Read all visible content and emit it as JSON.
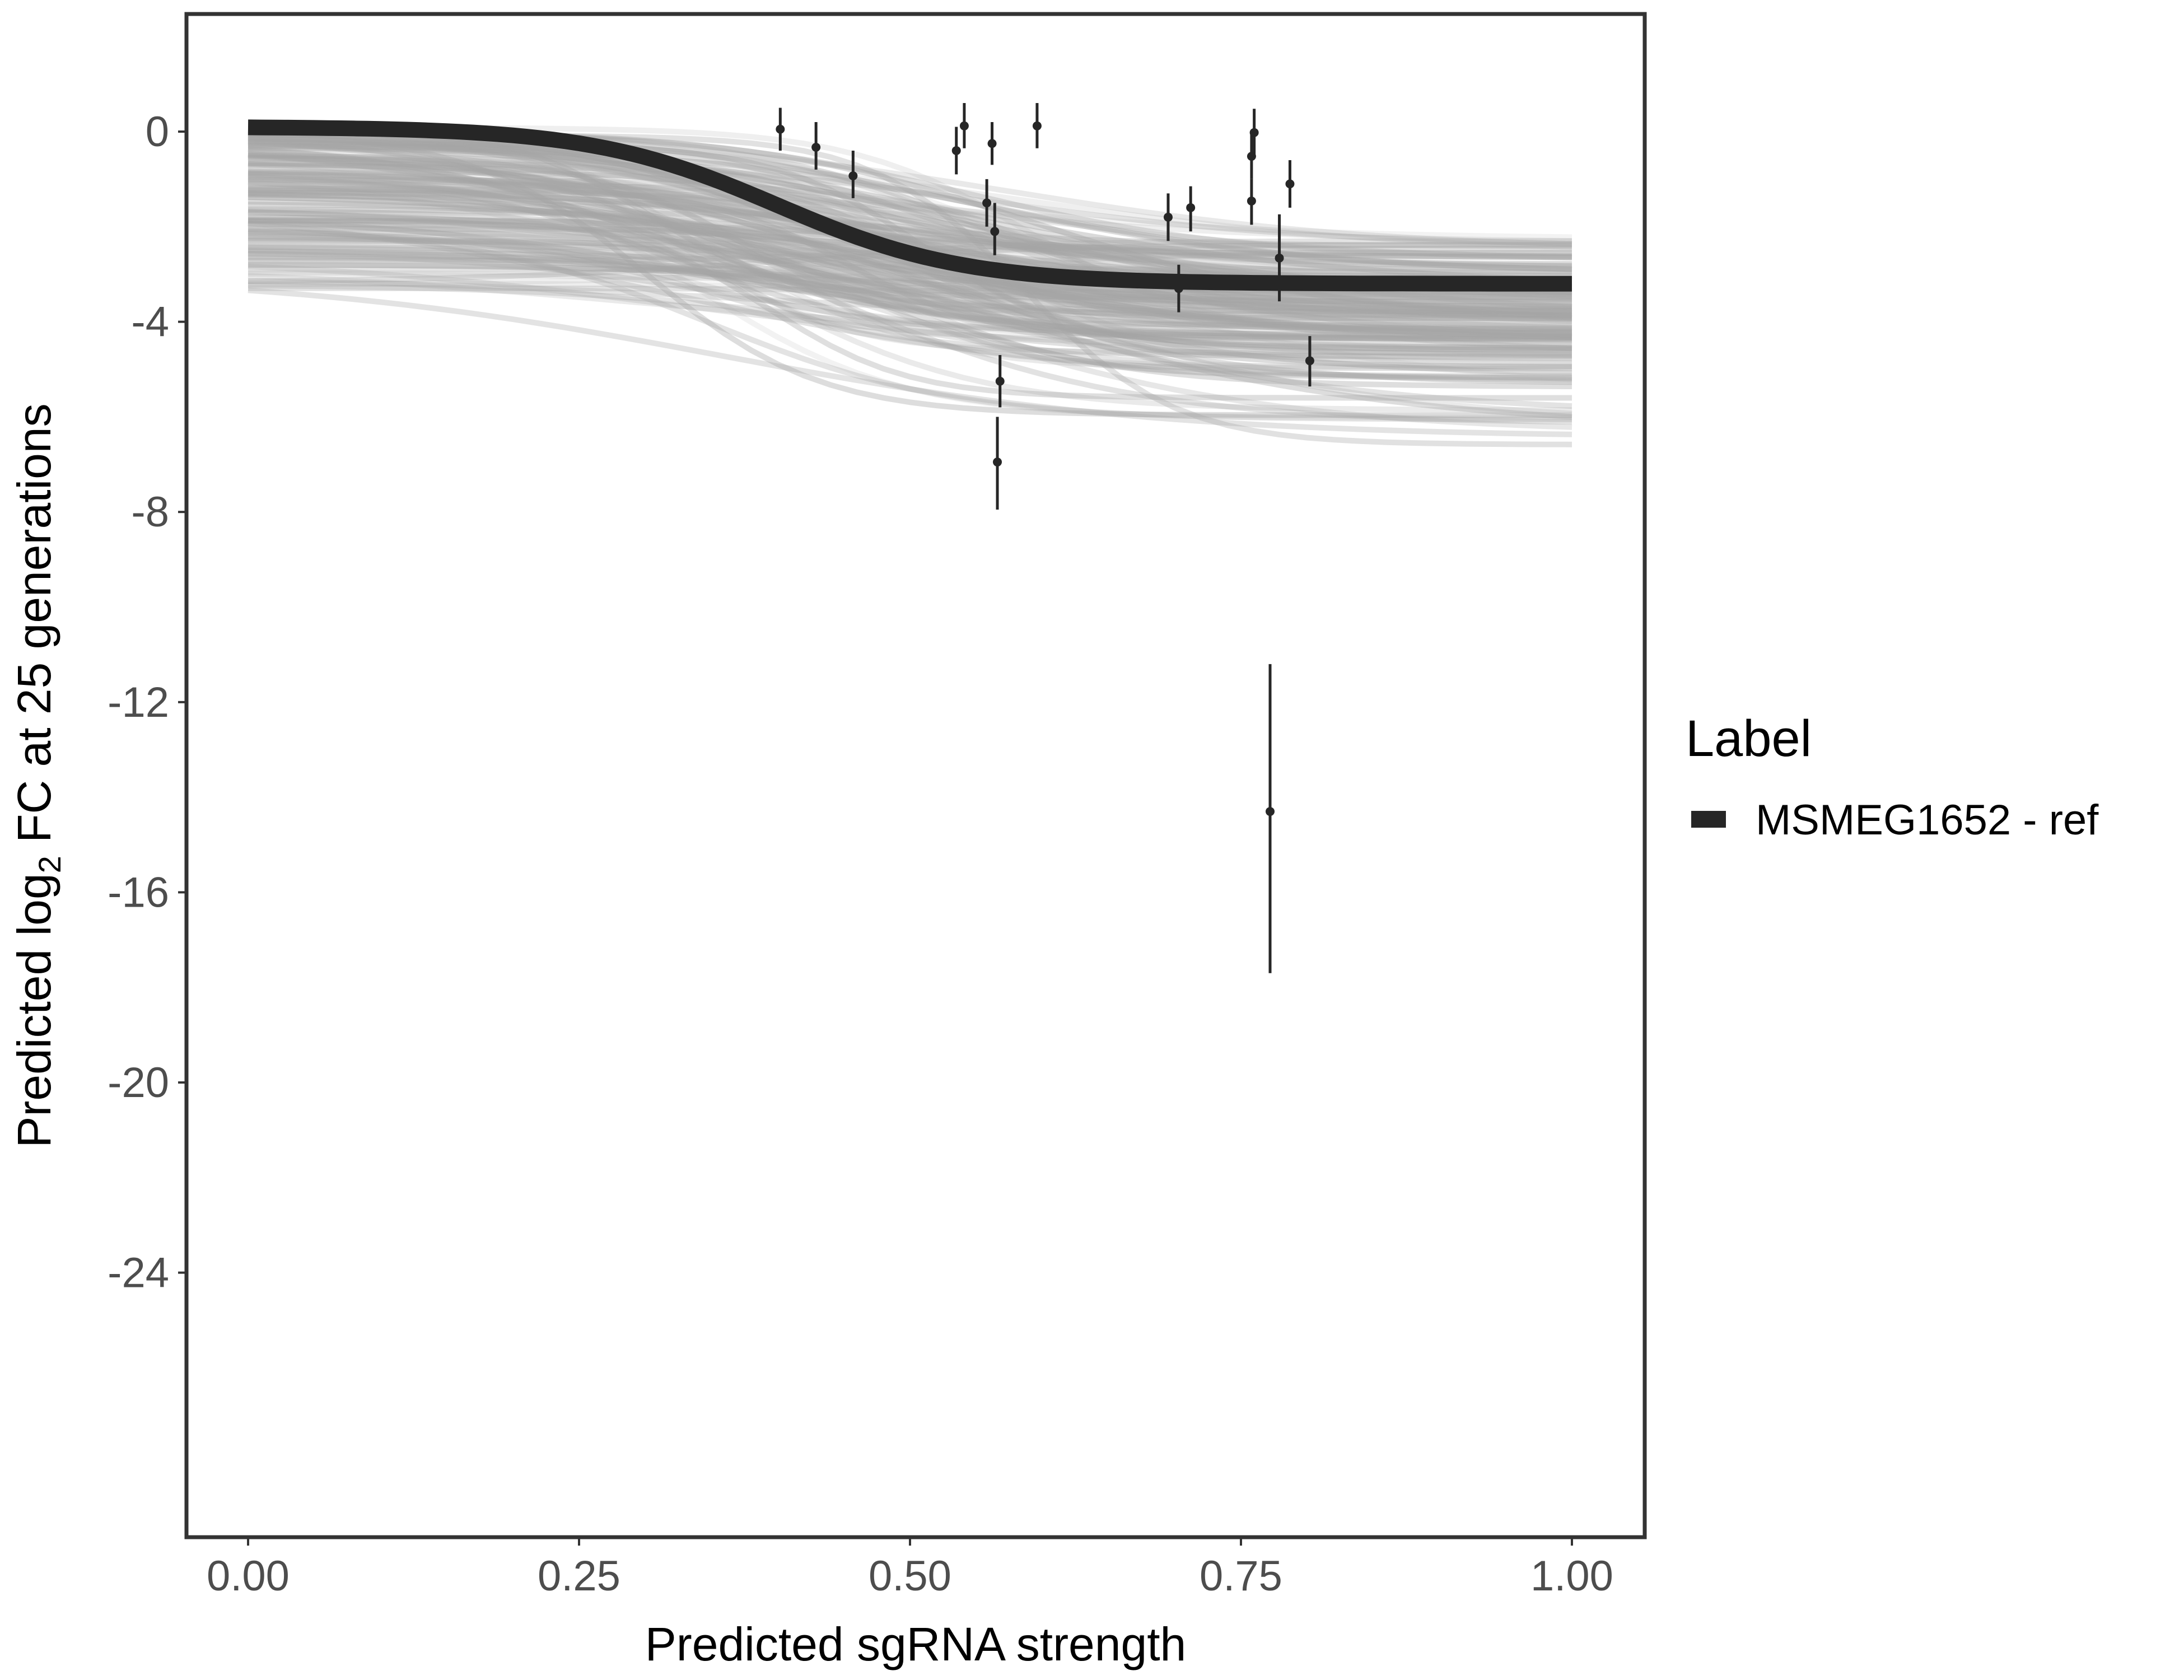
{
  "chart_data": {
    "type": "line",
    "xlabel": "Predicted sgRNA strength",
    "ylabel_parts": [
      "Predicted  log",
      "2",
      " FC at 25 generations"
    ],
    "xlim": [
      -0.1,
      1.1
    ],
    "ylim": [
      -29.5,
      2.5
    ],
    "x_ticks": [
      0,
      0.25,
      0.5,
      0.75,
      1
    ],
    "x_tick_labels": [
      "0.00",
      "0.25",
      "0.50",
      "0.75",
      "1.00"
    ],
    "y_ticks": [
      0,
      -4,
      -8,
      -12,
      -16,
      -20,
      -24
    ],
    "y_tick_labels": [
      "0",
      "-4",
      "-8",
      "-12",
      "-16",
      "-20",
      "-24"
    ],
    "grid": false,
    "legend": {
      "title": "Label",
      "position": "right",
      "entries": [
        {
          "label": "MSMEG1652 - ref",
          "color": "#262626"
        }
      ]
    },
    "colors": {
      "fit_line": "#262626",
      "posterior_draws": "#a6a6a6",
      "points": "#262626",
      "frame": "#333333"
    },
    "fit_curve": {
      "name": "MSMEG1652 - ref",
      "shape": "sigmoid",
      "y_at_x0": 0.1,
      "y_at_x1": -3.2,
      "midpoint_x": 0.4
    },
    "posterior_draws": {
      "start_range": [
        0.1,
        -3.4
      ],
      "end_range": [
        -0.3,
        -6.5
      ]
    },
    "points": [
      {
        "x": 0.402,
        "y": 0.05,
        "ymin": -0.4,
        "ymax": 0.5
      },
      {
        "x": 0.429,
        "y": -0.33,
        "ymin": -0.8,
        "ymax": 0.2
      },
      {
        "x": 0.457,
        "y": -0.93,
        "ymin": -1.4,
        "ymax": -0.4
      },
      {
        "x": 0.535,
        "y": -0.4,
        "ymin": -0.9,
        "ymax": 0.1
      },
      {
        "x": 0.541,
        "y": 0.12,
        "ymin": -0.35,
        "ymax": 0.6
      },
      {
        "x": 0.562,
        "y": -0.25,
        "ymin": -0.7,
        "ymax": 0.2
      },
      {
        "x": 0.558,
        "y": -1.5,
        "ymin": -2.0,
        "ymax": -1.0
      },
      {
        "x": 0.564,
        "y": -2.1,
        "ymin": -2.6,
        "ymax": -1.5
      },
      {
        "x": 0.568,
        "y": -5.25,
        "ymin": -5.8,
        "ymax": -4.7
      },
      {
        "x": 0.566,
        "y": -6.95,
        "ymin": -7.95,
        "ymax": -6.0
      },
      {
        "x": 0.596,
        "y": 0.12,
        "ymin": -0.35,
        "ymax": 0.6
      },
      {
        "x": 0.695,
        "y": -1.8,
        "ymin": -2.3,
        "ymax": -1.3
      },
      {
        "x": 0.703,
        "y": -3.3,
        "ymin": -3.8,
        "ymax": -2.8
      },
      {
        "x": 0.712,
        "y": -1.6,
        "ymin": -2.1,
        "ymax": -1.15
      },
      {
        "x": 0.76,
        "y": -0.02,
        "ymin": -0.5,
        "ymax": 0.48
      },
      {
        "x": 0.758,
        "y": -0.52,
        "ymin": -1.0,
        "ymax": 0.0
      },
      {
        "x": 0.758,
        "y": -1.46,
        "ymin": -1.96,
        "ymax": -1.0
      },
      {
        "x": 0.772,
        "y": -14.3,
        "ymin": -17.7,
        "ymax": -11.2
      },
      {
        "x": 0.779,
        "y": -2.66,
        "ymin": -3.57,
        "ymax": -1.74
      },
      {
        "x": 0.787,
        "y": -1.1,
        "ymin": -1.6,
        "ymax": -0.6
      },
      {
        "x": 0.802,
        "y": -4.82,
        "ymin": -5.36,
        "ymax": -4.3
      }
    ]
  }
}
